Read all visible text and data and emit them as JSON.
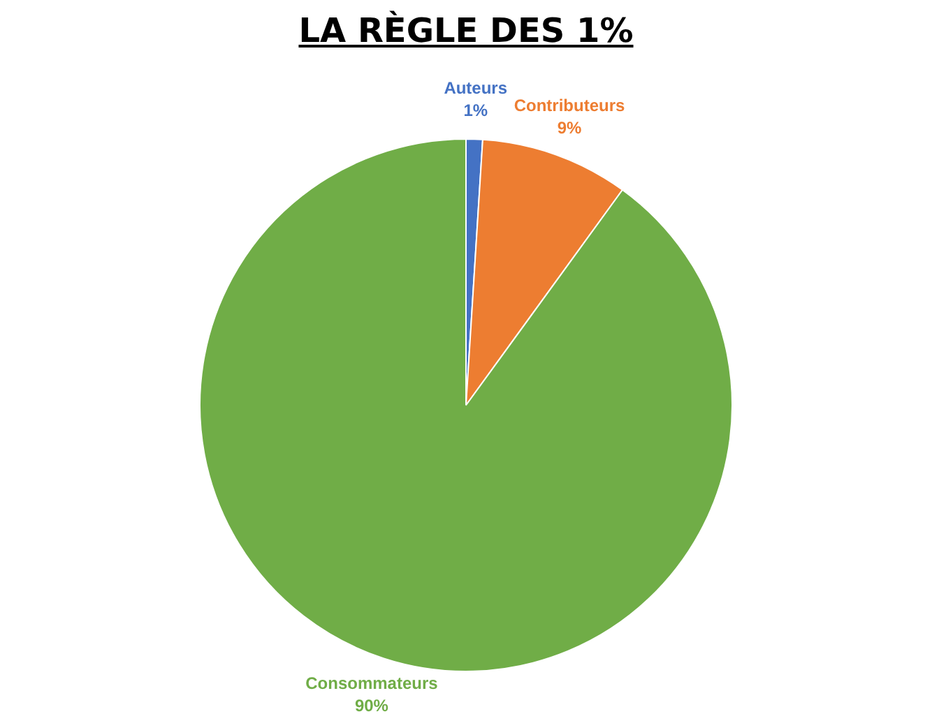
{
  "chart_data": {
    "type": "pie",
    "title": "LA RÈGLE DES 1%",
    "categories": [
      "Auteurs",
      "Contributeurs",
      "Consommateurs"
    ],
    "values": [
      1,
      9,
      90
    ],
    "colors": [
      "#4472c4",
      "#ed7d31",
      "#70ad47"
    ],
    "value_labels": [
      "1%",
      "9%",
      "90%"
    ],
    "legend": false
  }
}
